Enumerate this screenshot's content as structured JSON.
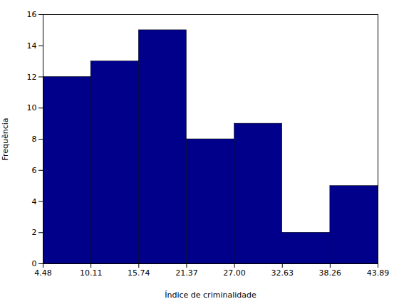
{
  "chart_data": {
    "type": "histogram",
    "bins": [
      4.48,
      10.11,
      15.74,
      21.37,
      27.0,
      32.63,
      38.26,
      43.89
    ],
    "values": [
      12,
      13,
      15,
      8,
      9,
      2,
      5
    ],
    "color": "#00008B",
    "xlabel": "Índice de criminalidade",
    "ylabel": "Frequência",
    "xlim": [
      4.48,
      43.89
    ],
    "xticks": [
      4.48,
      10.11,
      15.74,
      21.37,
      {
        "value": 27.0,
        "label": "27.00"
      },
      32.63,
      38.26,
      43.89
    ],
    "ylim": [
      0,
      16
    ],
    "yticks": [
      0,
      2,
      4,
      6,
      8,
      10,
      12,
      14,
      16
    ]
  }
}
